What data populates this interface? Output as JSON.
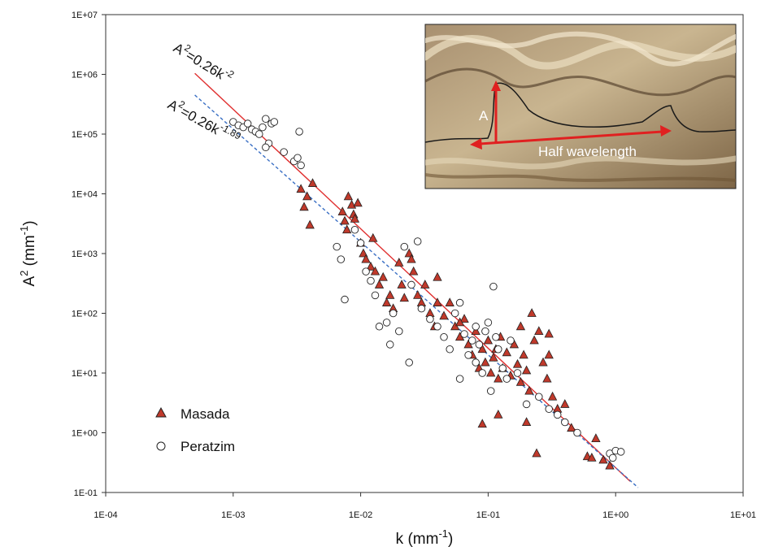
{
  "chart_data": {
    "type": "scatter",
    "x_scale": "log",
    "y_scale": "log",
    "xlim": [
      0.0001,
      10
    ],
    "ylim": [
      0.1,
      10000000
    ],
    "xlabel": "k (mm",
    "xlabel_sup": "-1",
    "xlabel_end": ")",
    "ylabel": "A",
    "ylabel_sup": "2",
    "ylabel_end": " (mm",
    "ylabel_sup2": "-1",
    "ylabel_close": ")",
    "x_ticks": [
      "1E-04",
      "1E-03",
      "1E-02",
      "1E-01",
      "1E+00",
      "1E+01"
    ],
    "y_ticks": [
      "1E-01",
      "1E+00",
      "1E+01",
      "1E+02",
      "1E+03",
      "1E+04",
      "1E+05",
      "1E+06",
      "1E+07"
    ],
    "legend_position": "bottom-left",
    "series": [
      {
        "name": "Masada",
        "marker": "triangle",
        "color": "#c0392b",
        "points": [
          [
            0.0034,
            12000
          ],
          [
            0.0038,
            9000
          ],
          [
            0.0042,
            15000
          ],
          [
            0.004,
            3000
          ],
          [
            0.0036,
            6000
          ],
          [
            0.0072,
            5000
          ],
          [
            0.0075,
            3500
          ],
          [
            0.0078,
            2500
          ],
          [
            0.008,
            9000
          ],
          [
            0.0085,
            6500
          ],
          [
            0.0088,
            4500
          ],
          [
            0.009,
            3800
          ],
          [
            0.0095,
            7000
          ],
          [
            0.01,
            1500
          ],
          [
            0.0105,
            1000
          ],
          [
            0.011,
            800
          ],
          [
            0.012,
            600
          ],
          [
            0.0125,
            1800
          ],
          [
            0.013,
            500
          ],
          [
            0.014,
            300
          ],
          [
            0.015,
            400
          ],
          [
            0.016,
            150
          ],
          [
            0.017,
            200
          ],
          [
            0.018,
            120
          ],
          [
            0.02,
            700
          ],
          [
            0.021,
            300
          ],
          [
            0.022,
            180
          ],
          [
            0.024,
            1000
          ],
          [
            0.025,
            800
          ],
          [
            0.026,
            500
          ],
          [
            0.028,
            200
          ],
          [
            0.03,
            150
          ],
          [
            0.032,
            300
          ],
          [
            0.035,
            100
          ],
          [
            0.038,
            60
          ],
          [
            0.04,
            400
          ],
          [
            0.045,
            90
          ],
          [
            0.05,
            150
          ],
          [
            0.055,
            60
          ],
          [
            0.06,
            40
          ],
          [
            0.065,
            80
          ],
          [
            0.07,
            30
          ],
          [
            0.075,
            20
          ],
          [
            0.08,
            50
          ],
          [
            0.085,
            12
          ],
          [
            0.09,
            25
          ],
          [
            0.095,
            15
          ],
          [
            0.1,
            35
          ],
          [
            0.105,
            10
          ],
          [
            0.11,
            18
          ],
          [
            0.115,
            25
          ],
          [
            0.12,
            8
          ],
          [
            0.125,
            40
          ],
          [
            0.13,
            12
          ],
          [
            0.14,
            22
          ],
          [
            0.15,
            9
          ],
          [
            0.16,
            30
          ],
          [
            0.17,
            14
          ],
          [
            0.18,
            7
          ],
          [
            0.19,
            20
          ],
          [
            0.2,
            11
          ],
          [
            0.21,
            5
          ],
          [
            0.22,
            100
          ],
          [
            0.23,
            35
          ],
          [
            0.25,
            50
          ],
          [
            0.27,
            15
          ],
          [
            0.29,
            8
          ],
          [
            0.3,
            20
          ],
          [
            0.32,
            4
          ],
          [
            0.35,
            2.5
          ],
          [
            0.4,
            3
          ],
          [
            0.45,
            1.2
          ],
          [
            0.2,
            1.5
          ],
          [
            0.24,
            0.45
          ],
          [
            0.12,
            2
          ],
          [
            0.09,
            1.4
          ],
          [
            0.3,
            45
          ],
          [
            0.06,
            70
          ],
          [
            0.04,
            150
          ],
          [
            0.18,
            60
          ],
          [
            0.6,
            0.4
          ],
          [
            0.7,
            0.8
          ],
          [
            0.8,
            0.35
          ],
          [
            0.9,
            0.28
          ],
          [
            0.65,
            0.38
          ]
        ]
      },
      {
        "name": "Peratzim",
        "marker": "circle",
        "color": "#ffffff",
        "points": [
          [
            0.001,
            160000
          ],
          [
            0.0011,
            140000
          ],
          [
            0.0012,
            130000
          ],
          [
            0.0013,
            150000
          ],
          [
            0.0014,
            120000
          ],
          [
            0.0015,
            110000
          ],
          [
            0.0016,
            100000
          ],
          [
            0.0017,
            130000
          ],
          [
            0.0018,
            180000
          ],
          [
            0.0019,
            70000
          ],
          [
            0.002,
            150000
          ],
          [
            0.0021,
            160000
          ],
          [
            0.0025,
            50000
          ],
          [
            0.003,
            35000
          ],
          [
            0.0032,
            40000
          ],
          [
            0.0033,
            110000
          ],
          [
            0.0034,
            30000
          ],
          [
            0.0018,
            60000
          ],
          [
            0.0065,
            1300
          ],
          [
            0.007,
            800
          ],
          [
            0.0075,
            170
          ],
          [
            0.009,
            2500
          ],
          [
            0.01,
            1500
          ],
          [
            0.011,
            500
          ],
          [
            0.012,
            350
          ],
          [
            0.013,
            200
          ],
          [
            0.014,
            60
          ],
          [
            0.016,
            70
          ],
          [
            0.017,
            30
          ],
          [
            0.018,
            100
          ],
          [
            0.02,
            50
          ],
          [
            0.022,
            1300
          ],
          [
            0.024,
            15
          ],
          [
            0.025,
            300
          ],
          [
            0.028,
            1600
          ],
          [
            0.03,
            120
          ],
          [
            0.035,
            80
          ],
          [
            0.04,
            60
          ],
          [
            0.045,
            40
          ],
          [
            0.05,
            25
          ],
          [
            0.055,
            100
          ],
          [
            0.06,
            150
          ],
          [
            0.065,
            45
          ],
          [
            0.07,
            20
          ],
          [
            0.075,
            35
          ],
          [
            0.08,
            15
          ],
          [
            0.085,
            30
          ],
          [
            0.09,
            10
          ],
          [
            0.095,
            50
          ],
          [
            0.1,
            70
          ],
          [
            0.105,
            5
          ],
          [
            0.11,
            280
          ],
          [
            0.115,
            40
          ],
          [
            0.12,
            25
          ],
          [
            0.13,
            12
          ],
          [
            0.14,
            8
          ],
          [
            0.15,
            35
          ],
          [
            0.17,
            10
          ],
          [
            0.2,
            3
          ],
          [
            0.25,
            4
          ],
          [
            0.3,
            2.5
          ],
          [
            0.35,
            2
          ],
          [
            0.4,
            1.5
          ],
          [
            0.5,
            1.0
          ],
          [
            0.9,
            0.45
          ],
          [
            1.0,
            0.5
          ],
          [
            1.1,
            0.48
          ],
          [
            0.95,
            0.38
          ],
          [
            0.06,
            8
          ],
          [
            0.08,
            60
          ]
        ]
      }
    ],
    "fit_lines": [
      {
        "label_base": "A",
        "label_sup": "2",
        "label_mid": "=0.26k",
        "label_exp": "-2",
        "coef": 0.26,
        "exponent": -2,
        "x_range": [
          0.0005,
          1.3
        ],
        "color": "#e03030",
        "style": "solid"
      },
      {
        "label_base": "A",
        "label_sup": "2",
        "label_mid": "=0.26k",
        "label_exp": "-1.89",
        "coef": 0.26,
        "exponent": -1.89,
        "x_range": [
          0.0005,
          1.5
        ],
        "color": "#3a6fc4",
        "style": "dashed"
      }
    ],
    "inset": {
      "labels": [
        "A",
        "Half wavelength"
      ]
    }
  }
}
